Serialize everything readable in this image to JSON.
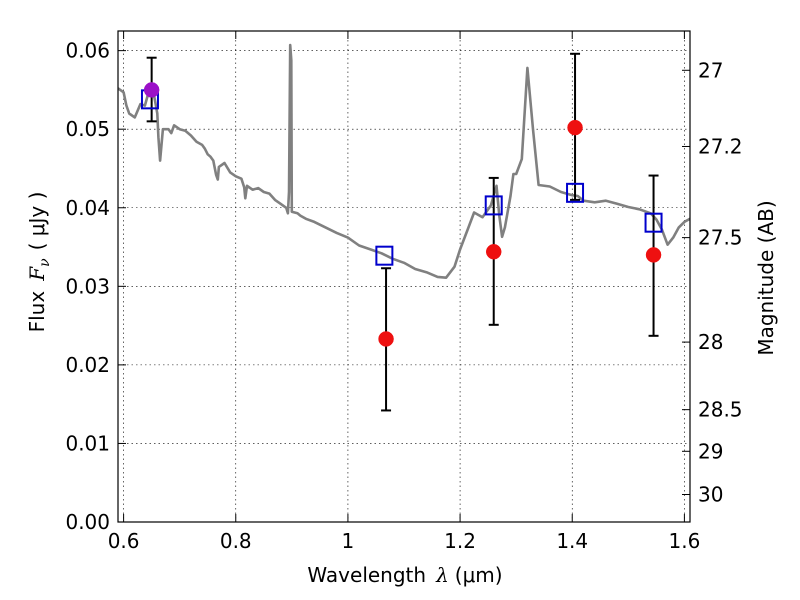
{
  "chart_data": {
    "type": "scatter",
    "xlabel_text": "Wavelength",
    "xlabel_symbol": "λ",
    "xlabel_unit": "(μm)",
    "ylabel_text": "Flux",
    "ylabel_symbol": "F",
    "ylabel_symbol_sub": "ν",
    "ylabel_unit": "( μJy )",
    "ylabel_right": "Magnitude (AB)",
    "xlim": [
      0.59,
      1.61
    ],
    "ylim": [
      0.0,
      0.0625
    ],
    "x_ticks": [
      0.6,
      0.8,
      1.0,
      1.2,
      1.4,
      1.6
    ],
    "x_tick_labels": [
      "0.6",
      "0.8",
      "1",
      "1.2",
      "1.4",
      "1.6"
    ],
    "y_ticks": [
      0.0,
      0.01,
      0.02,
      0.03,
      0.04,
      0.05,
      0.06
    ],
    "y_tick_labels": [
      "0.00",
      "0.01",
      "0.02",
      "0.03",
      "0.04",
      "0.05",
      "0.06"
    ],
    "right_ticks": [
      {
        "label": "27",
        "flux": 0.0575
      },
      {
        "label": "27.2",
        "flux": 0.0478
      },
      {
        "label": "27.5",
        "flux": 0.0362
      },
      {
        "label": "28",
        "flux": 0.0229
      },
      {
        "label": "28.5",
        "flux": 0.0143
      },
      {
        "label": "29",
        "flux": 0.009
      },
      {
        "label": "30",
        "flux": 0.0035
      }
    ],
    "grid": true,
    "series": [
      {
        "kind": "line",
        "color": "#808080",
        "points": [
          [
            0.59,
            0.0552
          ],
          [
            0.6,
            0.0547
          ],
          [
            0.605,
            0.053
          ],
          [
            0.61,
            0.052
          ],
          [
            0.62,
            0.0515
          ],
          [
            0.63,
            0.0532
          ],
          [
            0.638,
            0.053
          ],
          [
            0.645,
            0.0548
          ],
          [
            0.65,
            0.055
          ],
          [
            0.655,
            0.054
          ],
          [
            0.66,
            0.052
          ],
          [
            0.662,
            0.049
          ],
          [
            0.665,
            0.046
          ],
          [
            0.67,
            0.05
          ],
          [
            0.68,
            0.05
          ],
          [
            0.685,
            0.0495
          ],
          [
            0.69,
            0.0505
          ],
          [
            0.7,
            0.05
          ],
          [
            0.71,
            0.0498
          ],
          [
            0.72,
            0.0492
          ],
          [
            0.73,
            0.0484
          ],
          [
            0.74,
            0.048
          ],
          [
            0.745,
            0.0475
          ],
          [
            0.75,
            0.0468
          ],
          [
            0.755,
            0.0465
          ],
          [
            0.76,
            0.046
          ],
          [
            0.765,
            0.0442
          ],
          [
            0.768,
            0.0436
          ],
          [
            0.77,
            0.0452
          ],
          [
            0.78,
            0.0457
          ],
          [
            0.79,
            0.0445
          ],
          [
            0.8,
            0.044
          ],
          [
            0.81,
            0.0437
          ],
          [
            0.815,
            0.0426
          ],
          [
            0.817,
            0.0412
          ],
          [
            0.82,
            0.0428
          ],
          [
            0.83,
            0.0423
          ],
          [
            0.84,
            0.0425
          ],
          [
            0.85,
            0.042
          ],
          [
            0.86,
            0.0418
          ],
          [
            0.87,
            0.041
          ],
          [
            0.88,
            0.0405
          ],
          [
            0.89,
            0.04
          ],
          [
            0.893,
            0.0393
          ],
          [
            0.895,
            0.042
          ],
          [
            0.897,
            0.0607
          ],
          [
            0.899,
            0.0588
          ],
          [
            0.9,
            0.0395
          ],
          [
            0.91,
            0.0393
          ],
          [
            0.915,
            0.039
          ],
          [
            0.925,
            0.0386
          ],
          [
            0.94,
            0.0382
          ],
          [
            0.96,
            0.0375
          ],
          [
            0.98,
            0.0368
          ],
          [
            1.0,
            0.0362
          ],
          [
            1.02,
            0.0352
          ],
          [
            1.04,
            0.0347
          ],
          [
            1.06,
            0.0342
          ],
          [
            1.08,
            0.0335
          ],
          [
            1.1,
            0.033
          ],
          [
            1.12,
            0.0322
          ],
          [
            1.14,
            0.0318
          ],
          [
            1.16,
            0.0312
          ],
          [
            1.175,
            0.0311
          ],
          [
            1.19,
            0.0325
          ],
          [
            1.2,
            0.0347
          ],
          [
            1.215,
            0.0375
          ],
          [
            1.225,
            0.0394
          ],
          [
            1.24,
            0.0388
          ],
          [
            1.255,
            0.0403
          ],
          [
            1.265,
            0.0428
          ],
          [
            1.27,
            0.039
          ],
          [
            1.275,
            0.0363
          ],
          [
            1.28,
            0.0375
          ],
          [
            1.29,
            0.0415
          ],
          [
            1.295,
            0.0443
          ],
          [
            1.3,
            0.0443
          ],
          [
            1.31,
            0.0462
          ],
          [
            1.32,
            0.0578
          ],
          [
            1.33,
            0.05
          ],
          [
            1.34,
            0.0429
          ],
          [
            1.36,
            0.0427
          ],
          [
            1.38,
            0.042
          ],
          [
            1.39,
            0.0418
          ],
          [
            1.4,
            0.0416
          ],
          [
            1.41,
            0.0415
          ],
          [
            1.42,
            0.0409
          ],
          [
            1.44,
            0.0407
          ],
          [
            1.46,
            0.0409
          ],
          [
            1.48,
            0.0405
          ],
          [
            1.5,
            0.0401
          ],
          [
            1.52,
            0.0398
          ],
          [
            1.54,
            0.0393
          ],
          [
            1.55,
            0.0385
          ],
          [
            1.56,
            0.0372
          ],
          [
            1.57,
            0.0353
          ],
          [
            1.58,
            0.0362
          ],
          [
            1.59,
            0.0375
          ],
          [
            1.6,
            0.0382
          ],
          [
            1.61,
            0.0386
          ]
        ]
      },
      {
        "kind": "open-squares",
        "color": "#0000cc",
        "x": [
          0.647,
          1.065,
          1.26,
          1.405,
          1.545
        ],
        "y": [
          0.0538,
          0.0339,
          0.0403,
          0.0419,
          0.0381
        ]
      },
      {
        "kind": "points-with-errorbars",
        "x": [
          0.65,
          1.068,
          1.26,
          1.405,
          1.545
        ],
        "y": [
          0.055,
          0.0233,
          0.0344,
          0.0502,
          0.034
        ],
        "err_low": [
          0.051,
          0.0142,
          0.0251,
          0.041,
          0.0237
        ],
        "err_high": [
          0.0591,
          0.0323,
          0.0438,
          0.0596,
          0.0441
        ],
        "colors": [
          "#9b10c8",
          "#ee1010",
          "#ee1010",
          "#ee1010",
          "#ee1010"
        ]
      }
    ]
  }
}
